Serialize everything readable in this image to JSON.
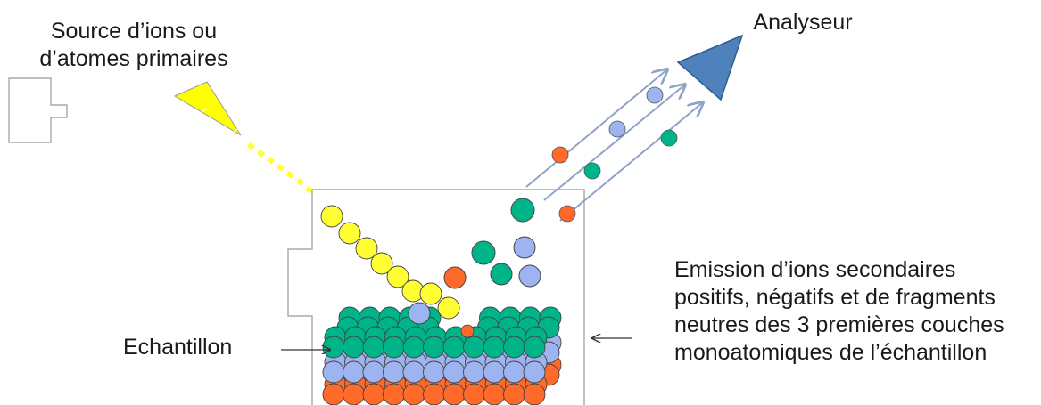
{
  "labels": {
    "source_line1": "Source d’ions ou",
    "source_line2": "d’atomes primaires",
    "analyseur": "Analyseur",
    "echantillon": "Echantillon",
    "emission_line1": "Emission d’ions secondaires",
    "emission_line2": "positifs, négatifs et de fragments",
    "emission_line3": "neutres des 3 premières couches",
    "emission_line4": "monoatomiques de l’échantillon"
  },
  "colors": {
    "primary_ion": "#ffff33",
    "source_cone": "#ffff00",
    "analyseur": "#4f81bd",
    "atom_green": "#00b48a",
    "atom_blue": "#9db4f0",
    "atom_orange": "#ff6a2a",
    "trajectory": "#8fa3c8",
    "outline": "#888888"
  },
  "icons": {
    "source": "ion-gun-cone",
    "analyseur": "analyzer-triangle"
  }
}
